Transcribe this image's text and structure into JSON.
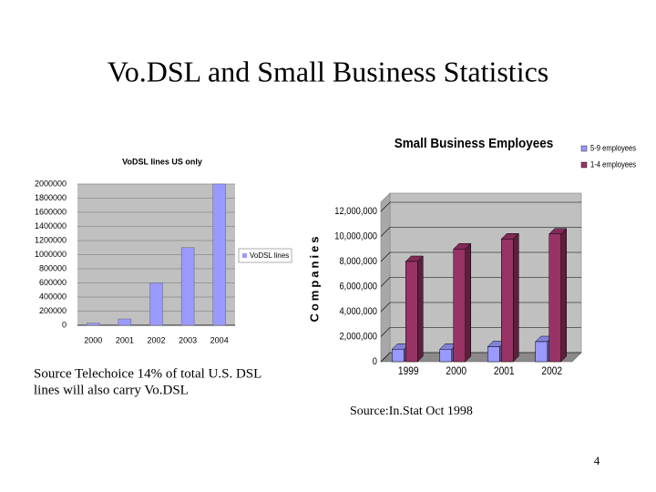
{
  "slide": {
    "title": "Vo.DSL and Small Business Statistics",
    "source_left": [
      "Source Telechoice 14% of total U.S. DSL",
      "lines will also carry Vo.DSL"
    ],
    "source_right": "Source:In.Stat Oct 1998",
    "page_number": "4"
  },
  "chart_data": [
    {
      "type": "bar",
      "title": "VoDSL lines US only",
      "categories": [
        "2000",
        "2001",
        "2002",
        "2003",
        "2004"
      ],
      "series": [
        {
          "name": "VoDSL lines",
          "color": "#9999ff",
          "values": [
            30000,
            90000,
            600000,
            1100000,
            2000000
          ]
        }
      ],
      "ylim": [
        0,
        2000000
      ],
      "yticks": [
        0,
        200000,
        400000,
        600000,
        800000,
        1000000,
        1200000,
        1400000,
        1600000,
        1800000,
        2000000
      ],
      "grid": true,
      "legend": "right"
    },
    {
      "type": "bar3d",
      "title": "Small Business Employees",
      "y_label": "Companies",
      "categories": [
        "1999",
        "2000",
        "2001",
        "2002"
      ],
      "series": [
        {
          "name": "5-9 employees",
          "color": "#9999ff",
          "values": [
            1000000,
            1000000,
            1200000,
            1600000
          ]
        },
        {
          "name": "1-4 employees",
          "color": "#993366",
          "values": [
            8000000,
            9000000,
            9800000,
            10200000
          ]
        }
      ],
      "ylim": [
        0,
        12000000
      ],
      "yticks": [
        0,
        {
          "value": 2000000,
          "label": "2,000,000"
        },
        {
          "value": 4000000,
          "label": "4,000,000"
        },
        {
          "value": 6000000,
          "label": "6,000,000"
        },
        {
          "value": 8000000,
          "label": "8,000,000"
        },
        {
          "value": 10000000,
          "label": "10,000,000"
        },
        {
          "value": 12000000,
          "label": "12,000,000"
        }
      ],
      "grid": true,
      "legend": "top-right"
    }
  ]
}
